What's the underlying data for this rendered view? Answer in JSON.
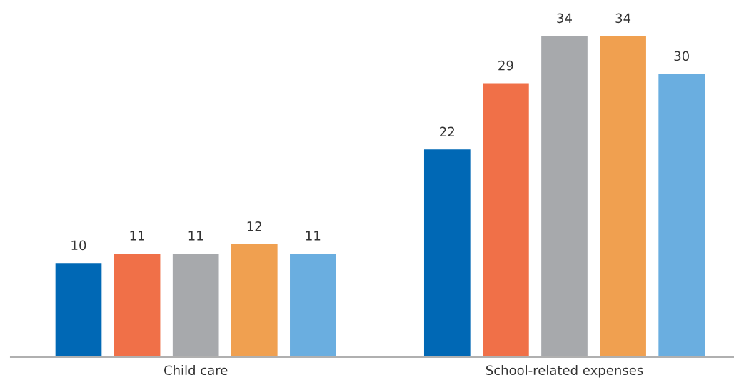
{
  "chart_data": {
    "type": "bar",
    "categories": [
      "Child care",
      "School-related expenses"
    ],
    "series": [
      {
        "color": "#0068b5",
        "values": [
          10,
          22
        ]
      },
      {
        "color": "#f07048",
        "values": [
          11,
          29
        ]
      },
      {
        "color": "#a7a9ac",
        "values": [
          11,
          34
        ]
      },
      {
        "color": "#f0a050",
        "values": [
          12,
          34
        ]
      },
      {
        "color": "#6aaee0",
        "values": [
          11,
          30
        ]
      }
    ],
    "data_labels": true,
    "tick_labels": "x"
  }
}
